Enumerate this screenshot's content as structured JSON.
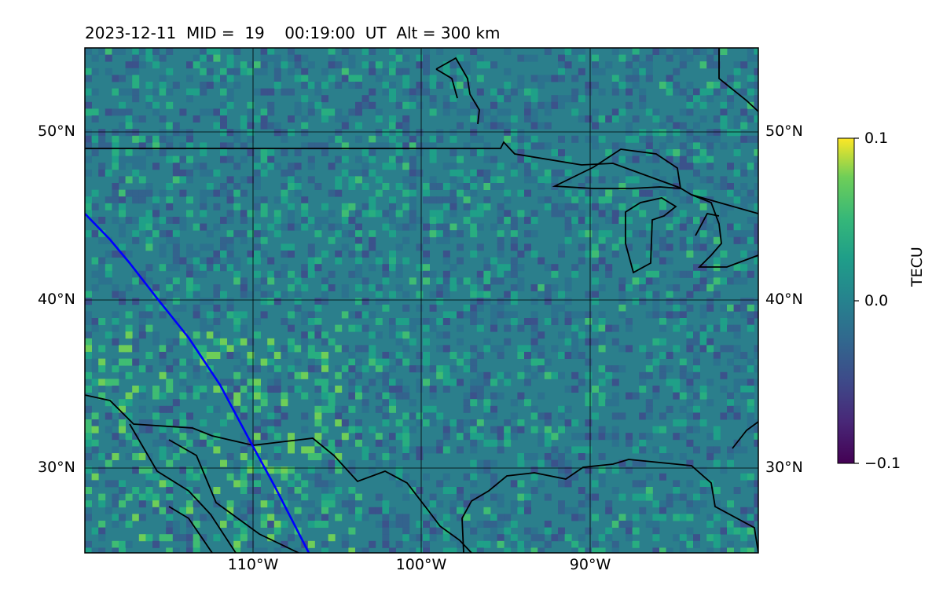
{
  "title": "2023-12-11  MID =  19    00:19:00  UT  Alt = 300 km",
  "map": {
    "lat_labels": [
      "50°N",
      "40°N",
      "30°N"
    ],
    "lon_labels": [
      "110°W",
      "100°W",
      "90°W"
    ],
    "extent": {
      "lon_min": -120,
      "lon_max": -80,
      "lat_min": 25,
      "lat_max": 55
    },
    "colormap": "viridis",
    "colors": {
      "coast": "#000000",
      "track": "#0000ff",
      "grid": "#000000"
    }
  },
  "colorbar": {
    "label": "TECU",
    "ticks": [
      "0.1",
      "0.0",
      "−0.1"
    ],
    "min": -0.1,
    "max": 0.1
  }
}
